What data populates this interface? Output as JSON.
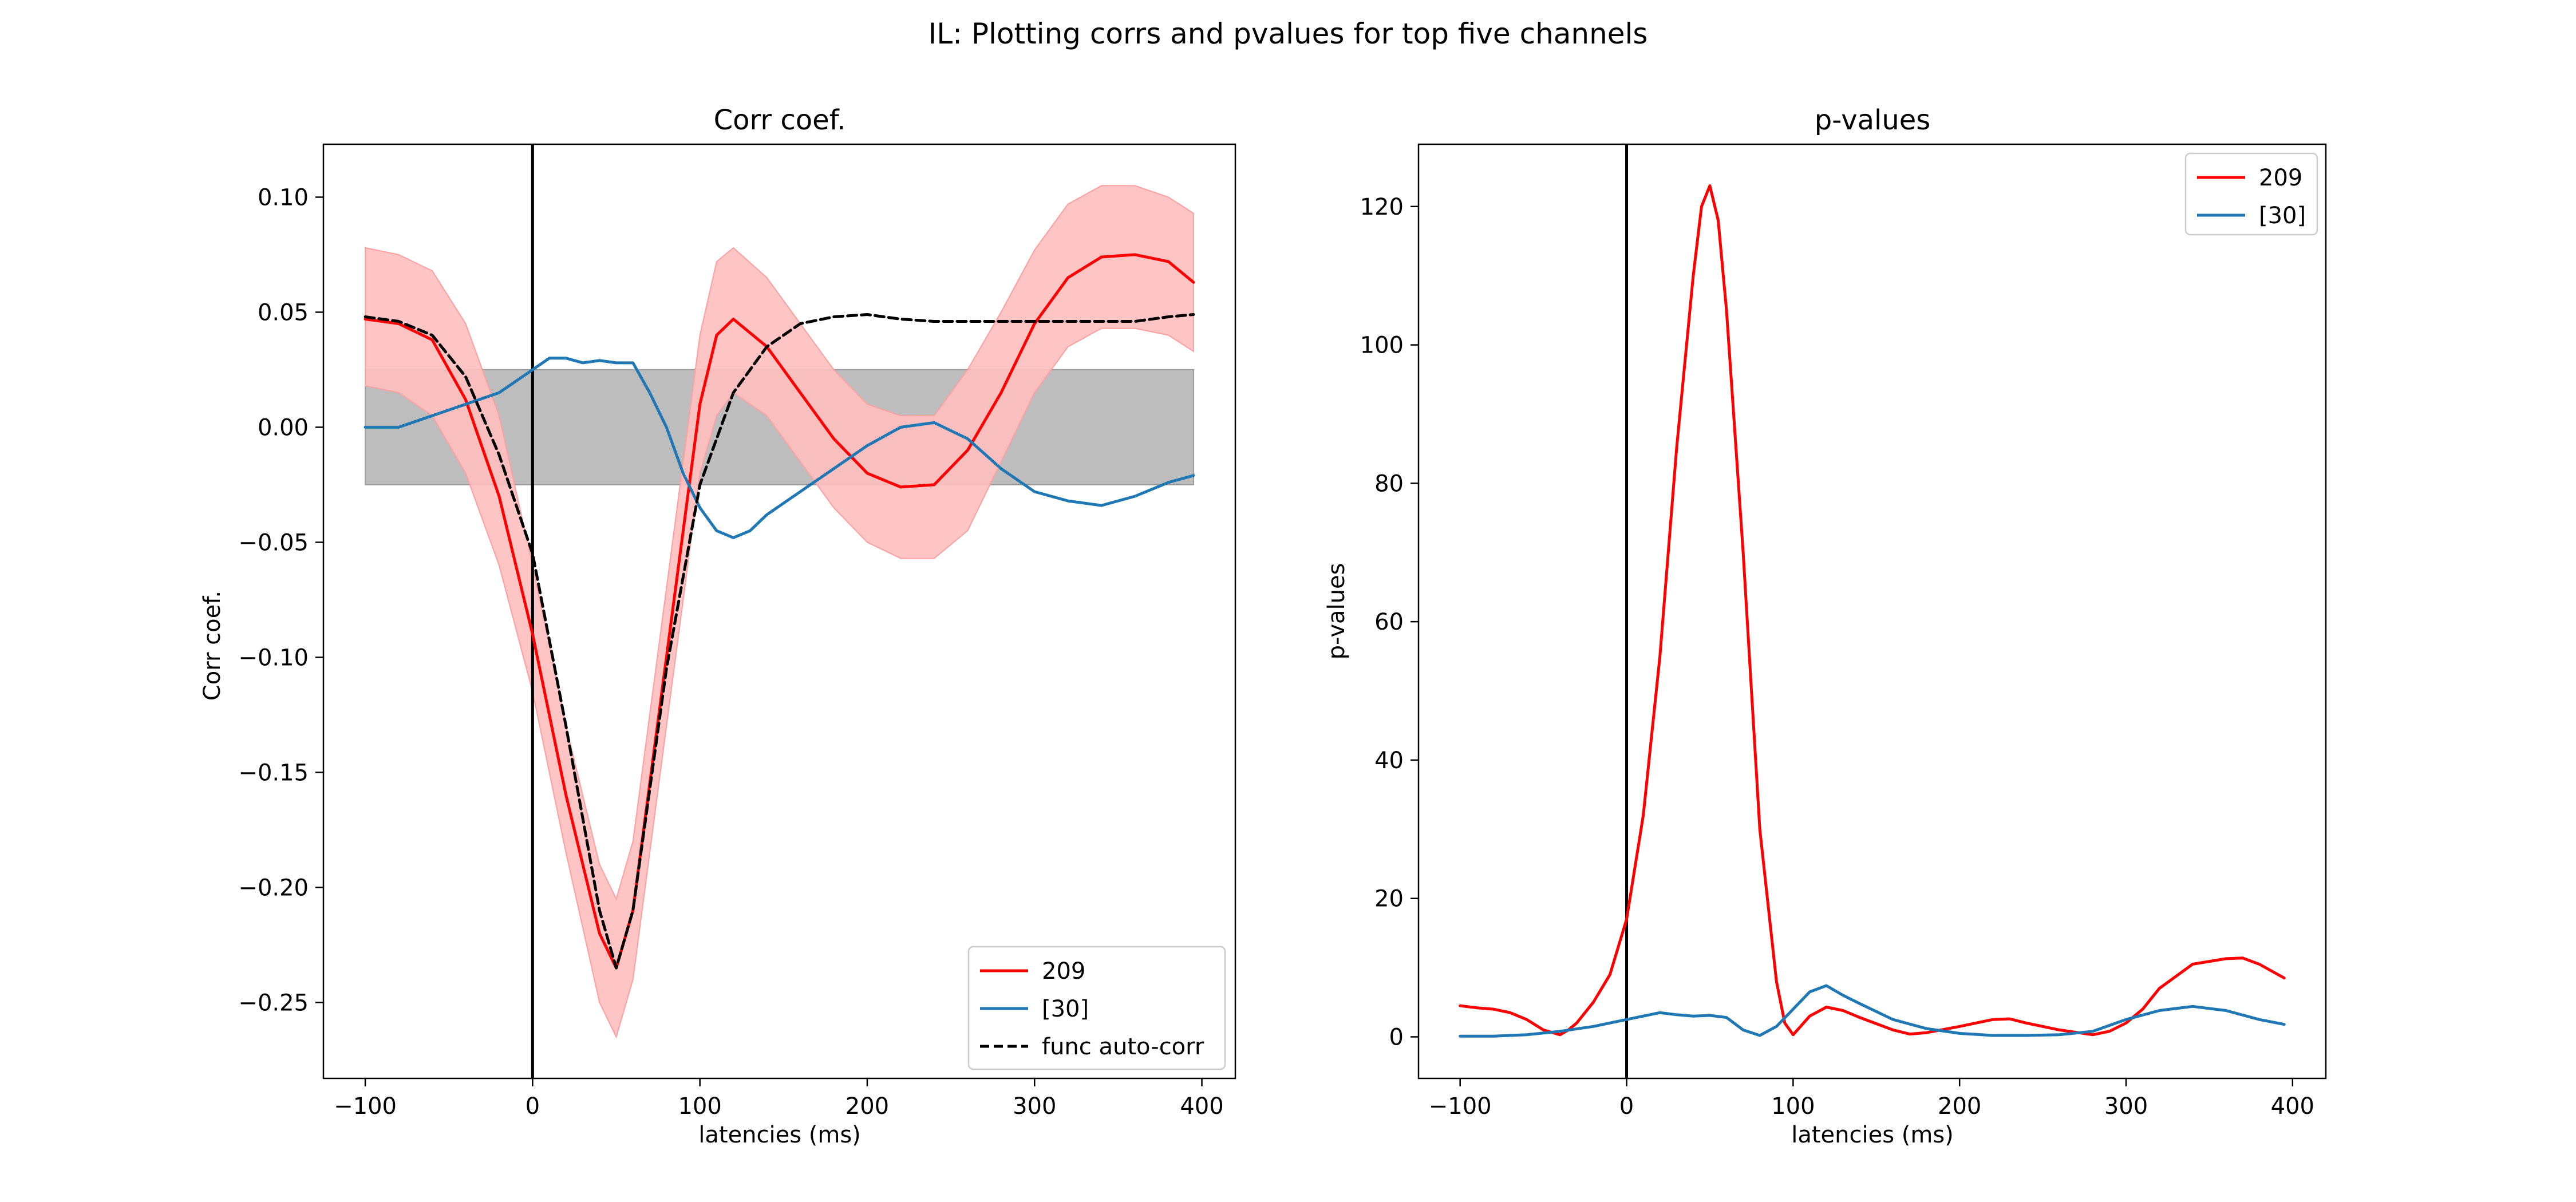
{
  "figure": {
    "suptitle": "IL: Plotting corrs and pvalues for top five channels"
  },
  "chart_data": [
    {
      "type": "line",
      "title": "Corr coef.",
      "xlabel": "latencies (ms)",
      "ylabel": "Corr coef.",
      "xlim": [
        -125,
        420
      ],
      "ylim": [
        -0.283,
        0.123
      ],
      "xticks": [
        -100,
        0,
        100,
        200,
        300,
        400
      ],
      "yticks": [
        0.1,
        0.05,
        0.0,
        -0.05,
        -0.1,
        -0.15,
        -0.2,
        -0.25
      ],
      "xtick_labels": [
        "−100",
        "0",
        "100",
        "200",
        "300",
        "400"
      ],
      "ytick_labels": [
        "0.10",
        "0.05",
        "0.00",
        "−0.05",
        "−0.10",
        "−0.15",
        "−0.20",
        "−0.25"
      ],
      "vline_x": 0,
      "legend_position": "lower right",
      "grid": false,
      "null_band": {
        "x": [
          -100,
          395
        ],
        "lower": -0.025,
        "upper": 0.025,
        "color": "#bdbdbd"
      },
      "series": [
        {
          "name": "209",
          "color": "#ff0000",
          "style": "solid",
          "band_color": "#ffbfbf",
          "x": [
            -100,
            -80,
            -60,
            -40,
            -20,
            0,
            20,
            40,
            50,
            60,
            80,
            100,
            110,
            120,
            140,
            160,
            180,
            200,
            220,
            240,
            260,
            280,
            300,
            320,
            340,
            360,
            380,
            395
          ],
          "y": [
            0.047,
            0.045,
            0.038,
            0.012,
            -0.03,
            -0.09,
            -0.16,
            -0.22,
            -0.235,
            -0.21,
            -0.1,
            0.01,
            0.04,
            0.047,
            0.035,
            0.015,
            -0.005,
            -0.02,
            -0.026,
            -0.025,
            -0.01,
            0.015,
            0.045,
            0.065,
            0.074,
            0.075,
            0.072,
            0.063
          ],
          "lower": [
            0.018,
            0.015,
            0.005,
            -0.02,
            -0.06,
            -0.115,
            -0.185,
            -0.25,
            -0.265,
            -0.24,
            -0.13,
            -0.02,
            0.005,
            0.015,
            0.005,
            -0.015,
            -0.035,
            -0.05,
            -0.057,
            -0.057,
            -0.045,
            -0.015,
            0.015,
            0.035,
            0.043,
            0.043,
            0.04,
            0.033
          ],
          "upper": [
            0.078,
            0.075,
            0.068,
            0.045,
            0.005,
            -0.06,
            -0.13,
            -0.19,
            -0.205,
            -0.18,
            -0.07,
            0.04,
            0.072,
            0.078,
            0.065,
            0.045,
            0.025,
            0.01,
            0.005,
            0.005,
            0.025,
            0.05,
            0.077,
            0.097,
            0.105,
            0.105,
            0.1,
            0.093
          ]
        },
        {
          "name": "[30]",
          "color": "#1f77b4",
          "style": "solid",
          "x": [
            -100,
            -80,
            -60,
            -40,
            -20,
            0,
            10,
            20,
            30,
            40,
            50,
            60,
            70,
            80,
            90,
            100,
            110,
            120,
            130,
            140,
            160,
            180,
            200,
            220,
            230,
            240,
            260,
            280,
            300,
            320,
            340,
            360,
            380,
            395
          ],
          "y": [
            0.0,
            0.0,
            0.005,
            0.01,
            0.015,
            0.025,
            0.03,
            0.03,
            0.028,
            0.029,
            0.028,
            0.028,
            0.015,
            0.0,
            -0.02,
            -0.035,
            -0.045,
            -0.048,
            -0.045,
            -0.038,
            -0.028,
            -0.018,
            -0.008,
            0.0,
            0.001,
            0.002,
            -0.005,
            -0.018,
            -0.028,
            -0.032,
            -0.034,
            -0.03,
            -0.024,
            -0.021
          ]
        },
        {
          "name": "func auto-corr",
          "color": "#000000",
          "style": "dashed",
          "x": [
            -100,
            -80,
            -60,
            -40,
            -20,
            0,
            20,
            40,
            50,
            60,
            80,
            100,
            120,
            140,
            160,
            180,
            200,
            220,
            240,
            260,
            280,
            300,
            320,
            340,
            360,
            380,
            395
          ],
          "y": [
            0.048,
            0.046,
            0.04,
            0.022,
            -0.012,
            -0.055,
            -0.13,
            -0.21,
            -0.235,
            -0.21,
            -0.105,
            -0.025,
            0.015,
            0.035,
            0.045,
            0.048,
            0.049,
            0.047,
            0.046,
            0.046,
            0.046,
            0.046,
            0.046,
            0.046,
            0.046,
            0.048,
            0.049
          ]
        }
      ]
    },
    {
      "type": "line",
      "title": "p-values",
      "xlabel": "latencies (ms)",
      "ylabel": "p-values",
      "xlim": [
        -125,
        420
      ],
      "ylim": [
        -6,
        129
      ],
      "xticks": [
        -100,
        0,
        100,
        200,
        300,
        400
      ],
      "yticks": [
        0,
        20,
        40,
        60,
        80,
        100,
        120
      ],
      "xtick_labels": [
        "−100",
        "0",
        "100",
        "200",
        "300",
        "400"
      ],
      "ytick_labels": [
        "0",
        "20",
        "40",
        "60",
        "80",
        "100",
        "120"
      ],
      "vline_x": 0,
      "legend_position": "upper right",
      "grid": false,
      "series": [
        {
          "name": "209",
          "color": "#ff0000",
          "style": "solid",
          "x": [
            -100,
            -90,
            -80,
            -70,
            -60,
            -50,
            -40,
            -35,
            -30,
            -20,
            -10,
            0,
            10,
            20,
            30,
            40,
            45,
            50,
            55,
            60,
            70,
            80,
            90,
            95,
            100,
            110,
            120,
            130,
            140,
            160,
            170,
            180,
            200,
            220,
            230,
            240,
            260,
            280,
            290,
            300,
            310,
            320,
            340,
            360,
            370,
            380,
            395
          ],
          "y": [
            4.5,
            4.2,
            4.0,
            3.5,
            2.5,
            1.0,
            0.3,
            1.0,
            2.0,
            5.0,
            9.0,
            17.0,
            32.0,
            55.0,
            85.0,
            110.0,
            120.0,
            123.0,
            118.0,
            105.0,
            70.0,
            30.0,
            8.0,
            2.0,
            0.3,
            3.0,
            4.3,
            3.8,
            2.8,
            1.0,
            0.4,
            0.6,
            1.5,
            2.5,
            2.6,
            2.0,
            1.0,
            0.3,
            0.8,
            2.0,
            4.0,
            7.0,
            10.5,
            11.3,
            11.4,
            10.5,
            8.5
          ]
        },
        {
          "name": "[30]",
          "color": "#1f77b4",
          "style": "solid",
          "x": [
            -100,
            -80,
            -60,
            -40,
            -20,
            0,
            10,
            20,
            30,
            40,
            50,
            60,
            70,
            80,
            90,
            100,
            110,
            120,
            130,
            140,
            160,
            180,
            200,
            220,
            240,
            260,
            280,
            300,
            320,
            340,
            360,
            380,
            395
          ],
          "y": [
            0.1,
            0.1,
            0.3,
            0.8,
            1.5,
            2.5,
            3.0,
            3.5,
            3.2,
            3.0,
            3.1,
            2.8,
            1.0,
            0.2,
            1.5,
            4.0,
            6.5,
            7.4,
            6.0,
            4.8,
            2.5,
            1.2,
            0.5,
            0.2,
            0.2,
            0.3,
            0.8,
            2.5,
            3.8,
            4.4,
            3.8,
            2.5,
            1.8
          ]
        }
      ]
    }
  ]
}
